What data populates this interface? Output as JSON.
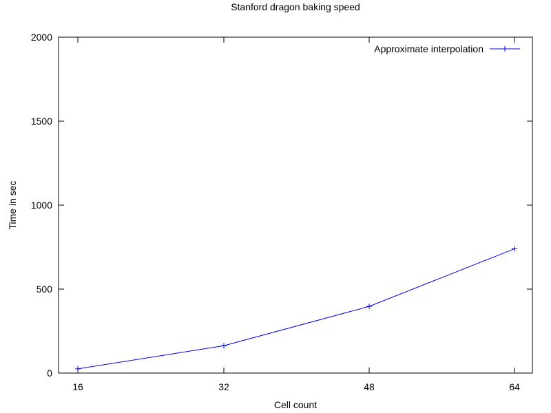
{
  "chart_data": {
    "type": "line",
    "title": "Stanford dragon baking speed",
    "xlabel": "Cell count",
    "ylabel": "Time in sec",
    "x": [
      16,
      32,
      48,
      64
    ],
    "xticks": [
      "16",
      "32",
      "48",
      "64"
    ],
    "yticks": [
      "0",
      "500",
      "1000",
      "1500",
      "2000"
    ],
    "ylim": [
      0,
      2000
    ],
    "grid": false,
    "legend_position": "top-right",
    "series": [
      {
        "name": "Approximate interpolation",
        "color": "#0000ee",
        "marker": "plus",
        "values": [
          25,
          163,
          397,
          740
        ]
      }
    ]
  }
}
